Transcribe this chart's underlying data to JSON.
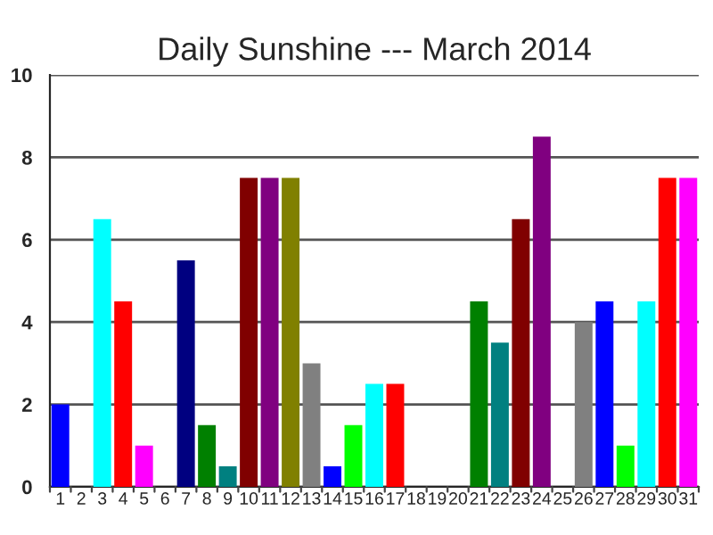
{
  "chart_data": {
    "type": "bar",
    "title": "Daily Sunshine --- March 2014",
    "categories": [
      "1",
      "2",
      "3",
      "4",
      "5",
      "6",
      "7",
      "8",
      "9",
      "10",
      "11",
      "12",
      "13",
      "14",
      "15",
      "16",
      "17",
      "18",
      "19",
      "20",
      "21",
      "22",
      "23",
      "24",
      "25",
      "26",
      "27",
      "28",
      "29",
      "30",
      "31"
    ],
    "values": [
      2,
      0,
      6.5,
      4.5,
      1,
      0,
      5.5,
      1.5,
      0.5,
      7.5,
      7.5,
      7.5,
      3,
      0.5,
      1.5,
      2.5,
      2.5,
      0,
      0,
      0,
      4.5,
      3.5,
      6.5,
      8.5,
      0,
      4,
      4.5,
      1,
      4.5,
      7.5,
      7.5
    ],
    "colors": [
      "#0000ff",
      null,
      "#00ffff",
      "#ff0000",
      "#ff00ff",
      null,
      "#000080",
      "#008000",
      "#008080",
      "#800000",
      "#800080",
      "#808000",
      "#808080",
      "#0000ff",
      "#00ff00",
      "#00ffff",
      "#ff0000",
      null,
      null,
      null,
      "#008000",
      "#008080",
      "#800000",
      "#800080",
      null,
      "#808080",
      "#0000ff",
      "#00ff00",
      "#00ffff",
      "#ff0000",
      "#ff00ff"
    ],
    "ylim": [
      0,
      10
    ],
    "yticks": [
      0,
      2,
      4,
      6,
      8,
      10
    ],
    "grid": "y",
    "legend": false
  }
}
